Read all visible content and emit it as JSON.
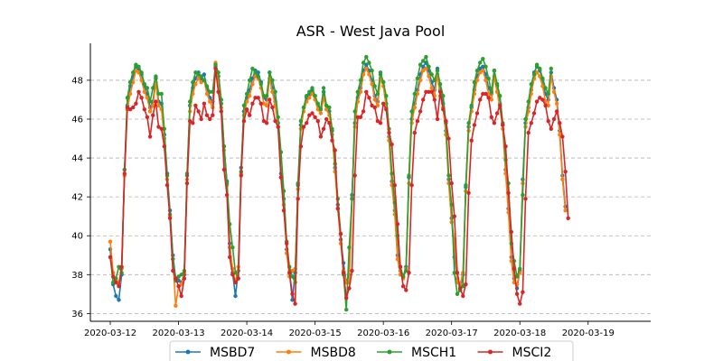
{
  "chart_data": {
    "type": "line",
    "title": "ASR - West Java Pool",
    "xlabel": "",
    "ylabel": "",
    "x_ticks": [
      "2020-03-12",
      "2020-03-13",
      "2020-03-14",
      "2020-03-15",
      "2020-03-16",
      "2020-03-17",
      "2020-03-18",
      "2020-03-19"
    ],
    "y_ticks": [
      36,
      38,
      40,
      42,
      44,
      46,
      48
    ],
    "xlim": [
      "2020-03-11 17:00",
      "2020-03-19 22:00"
    ],
    "ylim": [
      35.6,
      49.9
    ],
    "grid": "horizontal-dashed",
    "legend_position": "bottom",
    "sample_interval_hours": 1,
    "x_start": "2020-03-12 00:00",
    "series": [
      {
        "name": "MSBD7",
        "color": "#1f77b4",
        "values": [
          39.3,
          37.5,
          36.9,
          36.7,
          38.0,
          43.4,
          46.7,
          47.7,
          48.2,
          48.7,
          48.6,
          48.3,
          47.7,
          47.3,
          46.6,
          46.9,
          48.1,
          46.9,
          46.8,
          45.2,
          43.2,
          41.3,
          39.0,
          37.8,
          37.7,
          37.6,
          38.0,
          43.1,
          46.7,
          47.6,
          48.1,
          48.4,
          48.1,
          48.3,
          47.6,
          47.1,
          46.9,
          48.7,
          48.2,
          46.8,
          44.6,
          42.8,
          39.6,
          38.1,
          36.9,
          38.2,
          43.5,
          46.4,
          47.1,
          47.5,
          48.1,
          48.5,
          48.4,
          47.9,
          47.1,
          47.0,
          48.4,
          47.6,
          46.9,
          45.8,
          43.2,
          41.9,
          39.3,
          38.1,
          36.7,
          38.1,
          42.6,
          45.7,
          46.6,
          47.1,
          47.3,
          47.5,
          47.2,
          46.7,
          46.5,
          47.4,
          46.7,
          46.4,
          45.4,
          43.5,
          41.6,
          39.8,
          38.6,
          37.6,
          38.0,
          42.1,
          45.8,
          47.1,
          47.6,
          48.5,
          48.8,
          48.5,
          48.0,
          47.2,
          46.9,
          48.3,
          47.9,
          46.8,
          45.1,
          42.8,
          41.3,
          39.0,
          38.2,
          37.9,
          38.4,
          43.0,
          46.0,
          46.8,
          47.5,
          48.3,
          48.7,
          48.9,
          48.5,
          47.9,
          47.5,
          48.6,
          47.5,
          46.8,
          45.4,
          42.9,
          40.9,
          38.9,
          37.8,
          37.2,
          38.0,
          42.5,
          45.6,
          46.6,
          47.5,
          48.2,
          48.6,
          48.7,
          48.3,
          47.6,
          47.3,
          48.5,
          47.7,
          46.8,
          45.7,
          43.4,
          41.4,
          38.9,
          37.8,
          37.3,
          38.2,
          42.9,
          45.8,
          46.6,
          47.5,
          48.4,
          48.7,
          48.5,
          48.0,
          47.3,
          47.0,
          48.4,
          47.6,
          47.0,
          45.4,
          43.1,
          41.5
        ]
      },
      {
        "name": "MSBD8",
        "color": "#ff7f0e",
        "values": [
          39.7,
          38.1,
          37.7,
          37.6,
          38.3,
          43.1,
          46.5,
          47.3,
          47.9,
          48.5,
          48.4,
          48.0,
          47.4,
          47.1,
          46.4,
          46.7,
          47.9,
          46.7,
          46.5,
          45.0,
          42.9,
          41.0,
          38.8,
          36.4,
          37.4,
          37.5,
          38.1,
          42.9,
          46.4,
          47.3,
          47.8,
          48.1,
          47.9,
          48.0,
          47.3,
          46.9,
          46.6,
          48.9,
          48.0,
          46.6,
          44.4,
          42.6,
          39.4,
          38.3,
          37.6,
          38.4,
          43.2,
          46.2,
          46.9,
          47.2,
          47.8,
          48.2,
          48.1,
          47.6,
          46.8,
          46.7,
          48.1,
          47.4,
          46.7,
          45.6,
          43.0,
          41.6,
          39.1,
          37.9,
          38.2,
          38.3,
          42.4,
          45.5,
          46.4,
          46.9,
          47.1,
          47.3,
          47.0,
          46.5,
          46.3,
          47.1,
          46.5,
          46.2,
          45.2,
          43.3,
          41.4,
          39.6,
          38.2,
          37.6,
          37.6,
          41.9,
          45.6,
          46.9,
          47.4,
          48.3,
          48.6,
          48.3,
          47.8,
          47.0,
          46.7,
          48.1,
          47.7,
          46.6,
          44.9,
          42.6,
          41.1,
          38.8,
          38.0,
          37.8,
          38.3,
          42.7,
          45.8,
          46.6,
          47.3,
          48.0,
          48.5,
          48.6,
          48.2,
          47.6,
          47.2,
          48.3,
          47.2,
          46.6,
          45.2,
          42.7,
          40.7,
          39.8,
          37.6,
          37.5,
          38.1,
          42.3,
          45.4,
          46.4,
          47.3,
          48.0,
          48.4,
          48.5,
          48.0,
          47.3,
          47.0,
          48.2,
          47.4,
          46.6,
          45.5,
          43.2,
          41.2,
          38.7,
          37.6,
          37.5,
          38.1,
          42.7,
          45.6,
          46.4,
          47.3,
          48.1,
          48.4,
          48.2,
          47.7,
          46.9,
          46.7,
          48.2,
          47.4,
          46.8,
          45.2,
          42.9,
          41.3
        ]
      },
      {
        "name": "MSCH1",
        "color": "#2ca02c",
        "values": [
          38.9,
          37.6,
          37.8,
          38.4,
          38.1,
          43.4,
          47.1,
          47.9,
          48.4,
          48.8,
          48.7,
          48.4,
          47.8,
          47.6,
          46.9,
          47.6,
          48.2,
          47.3,
          47.3,
          45.5,
          43.1,
          41.1,
          38.8,
          37.7,
          37.9,
          38.0,
          38.2,
          43.2,
          46.9,
          47.9,
          48.4,
          48.3,
          48.2,
          48.0,
          47.7,
          47.4,
          47.4,
          48.8,
          48.4,
          47.0,
          44.6,
          42.7,
          40.6,
          39.4,
          38.1,
          37.8,
          43.3,
          46.7,
          47.3,
          48.0,
          48.6,
          48.4,
          48.2,
          47.8,
          47.2,
          47.2,
          48.4,
          48.0,
          47.4,
          46.1,
          44.3,
          42.3,
          39.7,
          38.4,
          37.9,
          37.6,
          42.7,
          45.9,
          46.6,
          47.2,
          47.4,
          47.6,
          47.2,
          46.8,
          46.5,
          47.6,
          46.7,
          46.6,
          45.5,
          43.7,
          41.9,
          40.1,
          38.0,
          36.2,
          39.4,
          41.9,
          46.4,
          47.4,
          48.0,
          48.9,
          49.2,
          48.9,
          48.5,
          47.7,
          47.3,
          48.4,
          47.9,
          47.2,
          45.5,
          43.2,
          41.7,
          40.0,
          38.4,
          37.9,
          38.2,
          43.1,
          46.4,
          47.3,
          48.1,
          48.8,
          49.0,
          49.2,
          48.7,
          48.3,
          48.0,
          48.5,
          47.8,
          47.2,
          45.8,
          43.1,
          41.6,
          38.1,
          37.0,
          37.2,
          37.4,
          42.6,
          45.8,
          46.7,
          47.9,
          48.5,
          48.9,
          49.1,
          48.7,
          48.1,
          47.4,
          48.5,
          47.8,
          47.2,
          45.8,
          43.9,
          42.7,
          39.6,
          38.7,
          37.9,
          38.3,
          42.1,
          46.0,
          46.9,
          47.8,
          48.3,
          48.8,
          48.6,
          48.1,
          47.6,
          47.3,
          48.6
        ]
      },
      {
        "name": "MSCI2",
        "color": "#d62728",
        "values": [
          38.9,
          37.9,
          37.6,
          37.4,
          38.4,
          43.2,
          46.6,
          46.5,
          46.6,
          46.8,
          47.4,
          47.1,
          46.5,
          46.1,
          45.1,
          46.2,
          46.9,
          45.6,
          45.5,
          44.6,
          42.6,
          40.9,
          38.2,
          37.8,
          37.4,
          36.9,
          37.8,
          42.7,
          45.9,
          45.8,
          46.7,
          46.4,
          46.0,
          46.8,
          46.2,
          46.0,
          46.2,
          48.6,
          47.4,
          46.4,
          43.4,
          42.1,
          38.9,
          38.0,
          37.6,
          37.8,
          43.1,
          45.9,
          46.5,
          46.2,
          46.8,
          47.1,
          47.1,
          46.8,
          45.9,
          45.8,
          47.0,
          46.6,
          45.9,
          45.6,
          43.0,
          41.3,
          39.6,
          38.1,
          37.0,
          36.5,
          41.9,
          44.6,
          45.6,
          45.8,
          46.2,
          46.3,
          46.1,
          45.9,
          45.1,
          45.5,
          46.0,
          45.8,
          44.9,
          44.4,
          41.4,
          40.1,
          38.1,
          36.8,
          37.3,
          38.2,
          43.1,
          46.1,
          46.1,
          46.4,
          47.4,
          47.1,
          46.7,
          46.6,
          45.9,
          45.8,
          46.8,
          46.5,
          45.3,
          44.7,
          42.6,
          40.6,
          38.4,
          37.4,
          37.2,
          38.1,
          42.6,
          45.3,
          45.9,
          46.4,
          47.0,
          47.4,
          47.4,
          47.4,
          47.0,
          46.0,
          47.4,
          46.5,
          45.9,
          45.0,
          42.7,
          41.0,
          38.1,
          37.3,
          36.9,
          37.5,
          42.2,
          44.9,
          45.7,
          46.3,
          47.0,
          47.3,
          47.3,
          47.1,
          46.1,
          45.8,
          46.3,
          46.7,
          45.7,
          44.6,
          42.2,
          40.2,
          38.3,
          37.0,
          36.5,
          37.1,
          41.9,
          45.3,
          45.8,
          46.3,
          46.9,
          47.1,
          47.0,
          46.7,
          45.9,
          45.5,
          46.0,
          46.4,
          45.8,
          45.1,
          43.3,
          40.9
        ]
      }
    ]
  }
}
